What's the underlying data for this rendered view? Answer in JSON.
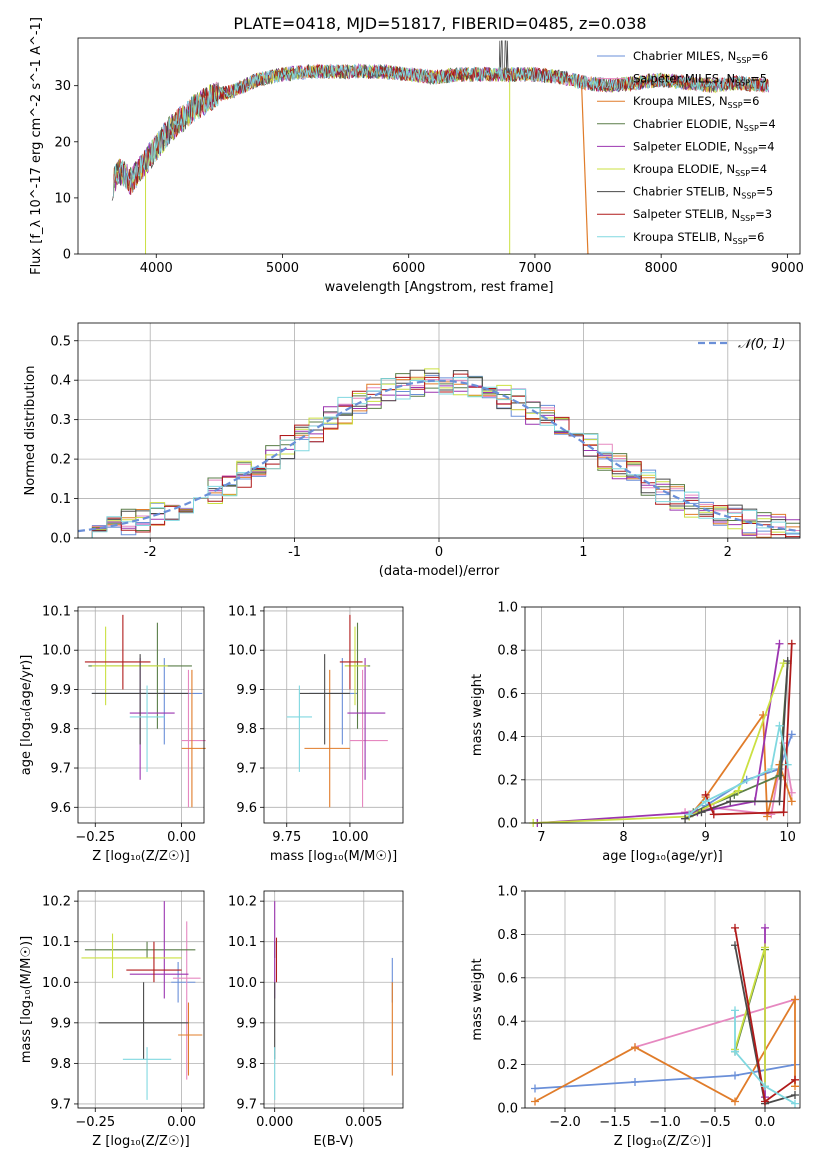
{
  "figure": {
    "title": "PLATE=0418, MJD=51817, FIBERID=0485, z=0.038"
  },
  "colors": {
    "Chabrier MILES": "#6a8fd8",
    "Salpeter MILES": "#e688c0",
    "Kroupa MILES": "#e07c2a",
    "Chabrier ELODIE": "#5a7d48",
    "Salpeter ELODIE": "#9b35b0",
    "Kroupa ELODIE": "#cbe042",
    "Chabrier STELIB": "#4a4a4a",
    "Salpeter STELIB": "#b01a1a",
    "Kroupa STELIB": "#80d8e0",
    "gaussian": "#6a8fd8"
  },
  "chart_data": [
    {
      "id": "spectrum",
      "type": "line",
      "title": "PLATE=0418, MJD=51817, FIBERID=0485, z=0.038",
      "xlabel": "wavelength [Angstrom, rest frame]",
      "ylabel": "Flux [f_λ 10^-17 erg cm^-2 s^-1 A^-1]",
      "xlim": [
        3380,
        9100
      ],
      "ylim": [
        0,
        38.5
      ],
      "xticks": [
        4000,
        5000,
        6000,
        7000,
        8000,
        9000
      ],
      "yticks": [
        0,
        10,
        20,
        30
      ],
      "grid": false,
      "legend_position": "top-right",
      "continuum_x": [
        3650,
        3700,
        3800,
        3900,
        4000,
        4100,
        4200,
        4300,
        4400,
        4500,
        4600,
        4700,
        4800,
        4900,
        5000,
        5200,
        5400,
        5600,
        5800,
        6000,
        6200,
        6400,
        6600,
        6800,
        7000,
        7200,
        7400,
        7600,
        7800,
        8000,
        8200,
        8400,
        8600,
        8850
      ],
      "continuum_y": [
        12,
        15,
        13,
        16,
        19,
        22,
        24,
        26,
        27.5,
        28.5,
        29,
        30,
        31,
        31.5,
        32,
        32.5,
        32.5,
        32.5,
        32.5,
        32,
        31.5,
        32,
        32,
        32,
        32,
        31.5,
        30.5,
        30,
        30.5,
        31,
        30.5,
        30,
        30.5,
        30
      ],
      "series": [
        {
          "name": "Chabrier MILES",
          "nssp": "6"
        },
        {
          "name": "Salpeter MILES",
          "nssp": "5"
        },
        {
          "name": "Kroupa MILES",
          "nssp": "6"
        },
        {
          "name": "Chabrier ELODIE",
          "nssp": "4"
        },
        {
          "name": "Salpeter ELODIE",
          "nssp": "4"
        },
        {
          "name": "Kroupa ELODIE",
          "nssp": "4"
        },
        {
          "name": "Chabrier STELIB",
          "nssp": "5"
        },
        {
          "name": "Salpeter STELIB",
          "nssp": "3"
        },
        {
          "name": "Kroupa STELIB",
          "nssp": "6"
        }
      ]
    },
    {
      "id": "residuals",
      "type": "line",
      "xlabel": "(data-model)/error",
      "ylabel": "Normed distribution",
      "xlim": [
        -2.5,
        2.5
      ],
      "ylim": [
        0,
        0.545
      ],
      "xticks": [
        -2,
        -1,
        0,
        1,
        2
      ],
      "yticks": [
        0.0,
        0.1,
        0.2,
        0.3,
        0.4,
        0.5
      ],
      "grid": true,
      "legend_position": "top-right",
      "legend_label": "𝒩(0, 1)",
      "bin_width": 0.1,
      "bin_start": -2.5,
      "histogram_ylabel": "Normed distribution"
    },
    {
      "id": "age_vs_Z",
      "type": "scatter",
      "xlabel": "Z [log₁₀(Z/Z☉)]",
      "ylabel": "age  [log₁₀(age/yr)]",
      "xlim": [
        -0.3,
        0.065
      ],
      "ylim": [
        9.56,
        10.11
      ],
      "xticks": [
        -0.25,
        0.0
      ],
      "xticklabels": [
        "−0.25",
        "0.00"
      ],
      "yticks": [
        9.6,
        9.7,
        9.8,
        9.9,
        10.0,
        10.1
      ],
      "grid": true,
      "points": [
        {
          "series": "Chabrier MILES",
          "x": -0.05,
          "xerr": [
            0.21,
            0.11
          ],
          "y": 9.89,
          "yerr": [
            0.13,
            0.09
          ]
        },
        {
          "series": "Salpeter MILES",
          "x": 0.02,
          "xerr": [
            0.02,
            0.05
          ],
          "y": 9.77,
          "yerr": [
            0.17,
            0.18
          ]
        },
        {
          "series": "Kroupa MILES",
          "x": 0.03,
          "xerr": [
            0.03,
            0.04
          ],
          "y": 9.75,
          "yerr": [
            0.15,
            0.2
          ]
        },
        {
          "series": "Chabrier ELODIE",
          "x": -0.07,
          "xerr": [
            0.2,
            0.1
          ],
          "y": 9.96,
          "yerr": [
            0.16,
            0.11
          ]
        },
        {
          "series": "Salpeter ELODIE",
          "x": -0.12,
          "xerr": [
            0.03,
            0.1
          ],
          "y": 9.84,
          "yerr": [
            0.17,
            0.14
          ]
        },
        {
          "series": "Kroupa ELODIE",
          "x": -0.22,
          "xerr": [
            0.04,
            0.18
          ],
          "y": 9.96,
          "yerr": [
            0.1,
            0.1
          ]
        },
        {
          "series": "Chabrier STELIB",
          "x": -0.12,
          "xerr": [
            0.14,
            0.14
          ],
          "y": 9.89,
          "yerr": [
            0.13,
            0.1
          ]
        },
        {
          "series": "Salpeter STELIB",
          "x": -0.17,
          "xerr": [
            0.11,
            0.08
          ],
          "y": 9.97,
          "yerr": [
            0.07,
            0.12
          ]
        },
        {
          "series": "Kroupa STELIB",
          "x": -0.1,
          "xerr": [
            0.05,
            0.05
          ],
          "y": 9.83,
          "yerr": [
            0.14,
            0.08
          ]
        }
      ]
    },
    {
      "id": "age_vs_mass",
      "type": "scatter",
      "xlabel": "mass [log₁₀(M/M☉)]",
      "xlim": [
        9.66,
        10.21
      ],
      "ylim": [
        9.56,
        10.11
      ],
      "xticks": [
        9.75,
        10.0
      ],
      "xticklabels": [
        "9.75",
        "10.00"
      ],
      "yticks": [
        9.6,
        9.7,
        9.8,
        9.9,
        10.0,
        10.1
      ],
      "grid": true,
      "points": [
        {
          "series": "Chabrier MILES",
          "x": 9.97,
          "xerr": [
            0.13,
            0.06
          ],
          "y": 9.89,
          "yerr": [
            0.13,
            0.09
          ]
        },
        {
          "series": "Salpeter MILES",
          "x": 10.05,
          "xerr": [
            0.05,
            0.1
          ],
          "y": 9.77,
          "yerr": [
            0.17,
            0.18
          ]
        },
        {
          "series": "Kroupa MILES",
          "x": 9.92,
          "xerr": [
            0.1,
            0.08
          ],
          "y": 9.75,
          "yerr": [
            0.15,
            0.2
          ]
        },
        {
          "series": "Chabrier ELODIE",
          "x": 10.03,
          "xerr": [
            0.05,
            0.05
          ],
          "y": 9.96,
          "yerr": [
            0.16,
            0.11
          ]
        },
        {
          "series": "Salpeter ELODIE",
          "x": 10.06,
          "xerr": [
            0.07,
            0.08
          ],
          "y": 9.84,
          "yerr": [
            0.17,
            0.14
          ]
        },
        {
          "series": "Kroupa ELODIE",
          "x": 10.02,
          "xerr": [
            0.04,
            0.05
          ],
          "y": 9.96,
          "yerr": [
            0.1,
            0.1
          ]
        },
        {
          "series": "Chabrier STELIB",
          "x": 9.9,
          "xerr": [
            0.1,
            0.1
          ],
          "y": 9.89,
          "yerr": [
            0.13,
            0.1
          ]
        },
        {
          "series": "Salpeter STELIB",
          "x": 10.0,
          "xerr": [
            0.04,
            0.05
          ],
          "y": 9.97,
          "yerr": [
            0.07,
            0.12
          ]
        },
        {
          "series": "Kroupa STELIB",
          "x": 9.8,
          "xerr": [
            0.05,
            0.05
          ],
          "y": 9.83,
          "yerr": [
            0.14,
            0.08
          ]
        }
      ]
    },
    {
      "id": "mass_weight_vs_age",
      "type": "line",
      "xlabel": "age  [log₁₀(age/yr)]",
      "ylabel": "mass weight",
      "xlim": [
        6.8,
        10.15
      ],
      "ylim": [
        0,
        1.0
      ],
      "xticks": [
        7,
        8,
        9,
        10
      ],
      "yticks": [
        0.0,
        0.2,
        0.4,
        0.6,
        0.8,
        1.0
      ],
      "grid": true,
      "series": [
        {
          "name": "Chabrier MILES",
          "x": [
            8.8,
            9.0,
            9.5,
            9.9,
            10.05
          ],
          "y": [
            0.03,
            0.08,
            0.2,
            0.25,
            0.41
          ]
        },
        {
          "name": "Salpeter MILES",
          "x": [
            8.75,
            9.1,
            9.8,
            9.95,
            10.05
          ],
          "y": [
            0.05,
            0.07,
            0.04,
            0.37,
            0.14
          ]
        },
        {
          "name": "Kroupa MILES",
          "x": [
            8.8,
            9.0,
            9.7,
            9.75,
            9.9,
            10.05
          ],
          "y": [
            0.03,
            0.12,
            0.5,
            0.03,
            0.27,
            0.1
          ]
        },
        {
          "name": "Chabrier ELODIE",
          "x": [
            8.85,
            9.35,
            9.9,
            10.0
          ],
          "y": [
            0.05,
            0.13,
            0.22,
            0.74
          ]
        },
        {
          "name": "Salpeter ELODIE",
          "x": [
            6.95,
            8.9,
            9.6,
            9.9
          ],
          "y": [
            0.0,
            0.05,
            0.1,
            0.83
          ]
        },
        {
          "name": "Kroupa ELODIE",
          "x": [
            6.9,
            8.8,
            9.4,
            9.95
          ],
          "y": [
            0.0,
            0.03,
            0.15,
            0.74
          ]
        },
        {
          "name": "Chabrier STELIB",
          "x": [
            8.75,
            8.95,
            9.3,
            9.9,
            10.0
          ],
          "y": [
            0.02,
            0.05,
            0.1,
            0.1,
            0.75
          ]
        },
        {
          "name": "Salpeter STELIB",
          "x": [
            9.0,
            9.1,
            9.95,
            10.05
          ],
          "y": [
            0.13,
            0.04,
            0.05,
            0.83
          ]
        },
        {
          "name": "Kroupa STELIB",
          "x": [
            8.8,
            9.0,
            9.8,
            9.9,
            10.0
          ],
          "y": [
            0.04,
            0.1,
            0.25,
            0.45,
            0.27
          ]
        }
      ]
    },
    {
      "id": "mass_vs_Z",
      "type": "scatter",
      "xlabel": "Z [log₁₀(Z/Z☉)]",
      "ylabel": "mass [log₁₀(M/M☉)]",
      "xlim": [
        -0.3,
        0.065
      ],
      "ylim": [
        9.69,
        10.225
      ],
      "xticks": [
        -0.25,
        0.0
      ],
      "xticklabels": [
        "−0.25",
        "0.00"
      ],
      "yticks": [
        9.7,
        9.8,
        9.9,
        10.0,
        10.1,
        10.2
      ],
      "grid": true,
      "points": [
        {
          "series": "Chabrier MILES",
          "x": -0.01,
          "xerr": [
            0.02,
            0.05
          ],
          "y": 10.0,
          "yerr": [
            0.05,
            0.05
          ]
        },
        {
          "series": "Salpeter MILES",
          "x": 0.015,
          "xerr": [
            0.04,
            0.04
          ],
          "y": 10.01,
          "yerr": [
            0.25,
            0.14
          ]
        },
        {
          "series": "Kroupa MILES",
          "x": 0.02,
          "xerr": [
            0.03,
            0.04
          ],
          "y": 9.87,
          "yerr": [
            0.1,
            0.08
          ]
        },
        {
          "series": "Chabrier ELODIE",
          "x": -0.1,
          "xerr": [
            0.18,
            0.14
          ],
          "y": 10.08,
          "yerr": [
            0.02,
            0.02
          ]
        },
        {
          "series": "Salpeter ELODIE",
          "x": -0.05,
          "xerr": [
            0.1,
            0.07
          ],
          "y": 10.02,
          "yerr": [
            0.06,
            0.18
          ]
        },
        {
          "series": "Kroupa ELODIE",
          "x": -0.2,
          "xerr": [
            0.09,
            0.2
          ],
          "y": 10.06,
          "yerr": [
            0.05,
            0.06
          ]
        },
        {
          "series": "Chabrier STELIB",
          "x": -0.11,
          "xerr": [
            0.13,
            0.13
          ],
          "y": 9.9,
          "yerr": [
            0.09,
            0.1
          ]
        },
        {
          "series": "Salpeter STELIB",
          "x": -0.08,
          "xerr": [
            0.08,
            0.08
          ],
          "y": 10.03,
          "yerr": [
            0.03,
            0.07
          ]
        },
        {
          "series": "Kroupa STELIB",
          "x": -0.1,
          "xerr": [
            0.07,
            0.07
          ],
          "y": 9.81,
          "yerr": [
            0.1,
            0.03
          ]
        }
      ]
    },
    {
      "id": "mass_vs_EBV",
      "type": "scatter",
      "xlabel": "E(B-V)",
      "xlim": [
        -0.0006,
        0.0072
      ],
      "ylim": [
        9.69,
        10.225
      ],
      "xticks": [
        0.0,
        0.005
      ],
      "xticklabels": [
        "0.000",
        "0.005"
      ],
      "yticks": [
        9.7,
        9.8,
        9.9,
        10.0,
        10.1,
        10.2
      ],
      "grid": true,
      "points": [
        {
          "series": "Chabrier MILES",
          "x": 0.0066,
          "y": 10.0,
          "yerr": [
            0.05,
            0.06
          ]
        },
        {
          "series": "Kroupa MILES",
          "x": 0.0066,
          "y": 9.87,
          "yerr": [
            0.1,
            0.13
          ]
        },
        {
          "series": "Chabrier ELODIE",
          "x": 0.0,
          "y": 10.08,
          "yerr": [
            0.02,
            0.02
          ]
        },
        {
          "series": "Salpeter ELODIE",
          "x": 0.0,
          "y": 10.02,
          "yerr": [
            0.06,
            0.18
          ]
        },
        {
          "series": "Chabrier STELIB",
          "x": 0.0,
          "y": 9.9,
          "yerr": [
            0.09,
            0.1
          ]
        },
        {
          "series": "Salpeter STELIB",
          "x": 0.0001,
          "y": 10.03,
          "yerr": [
            0.03,
            0.08
          ]
        },
        {
          "series": "Kroupa STELIB",
          "x": 0.0,
          "y": 9.81,
          "yerr": [
            0.1,
            0.03
          ]
        }
      ]
    },
    {
      "id": "mass_weight_vs_Z",
      "type": "line",
      "xlabel": "Z [log₁₀(Z/Z☉)]",
      "ylabel": "mass weight",
      "xlim": [
        -2.4,
        0.35
      ],
      "ylim": [
        0,
        1.0
      ],
      "xticks": [
        -2.0,
        -1.5,
        -1.0,
        -0.5,
        0.0
      ],
      "xticklabels": [
        "−2.0",
        "−1.5",
        "−1.0",
        "−0.5",
        "0.0"
      ],
      "yticks": [
        0.0,
        0.2,
        0.4,
        0.6,
        0.8,
        1.0
      ],
      "grid": true,
      "series": [
        {
          "name": "Chabrier MILES",
          "x": [
            -2.3,
            -1.3,
            -0.3,
            0.3
          ],
          "y": [
            0.09,
            0.12,
            0.15,
            0.2
          ]
        },
        {
          "name": "Salpeter MILES",
          "x": [
            -1.3,
            0.3
          ],
          "y": [
            0.28,
            0.5
          ]
        },
        {
          "name": "Kroupa MILES",
          "x": [
            -2.3,
            -1.3,
            -0.3,
            0.3,
            0.3
          ],
          "y": [
            0.03,
            0.28,
            0.03,
            0.5,
            0.1
          ]
        },
        {
          "name": "Chabrier ELODIE",
          "x": [
            -0.3,
            0.0
          ],
          "y": [
            0.26,
            0.73
          ]
        },
        {
          "name": "Salpeter ELODIE",
          "x": [
            0.0,
            0.0
          ],
          "y": [
            0.83,
            0.05
          ]
        },
        {
          "name": "Kroupa ELODIE",
          "x": [
            -0.3,
            0.0,
            0.0
          ],
          "y": [
            0.27,
            0.74,
            0.1
          ]
        },
        {
          "name": "Chabrier STELIB",
          "x": [
            -0.3,
            0.0,
            0.3
          ],
          "y": [
            0.75,
            0.02,
            0.06
          ]
        },
        {
          "name": "Salpeter STELIB",
          "x": [
            -0.3,
            0.0,
            0.3
          ],
          "y": [
            0.83,
            0.03,
            0.13
          ]
        },
        {
          "name": "Kroupa STELIB",
          "x": [
            -0.3,
            -0.3,
            0.0,
            0.3
          ],
          "y": [
            0.45,
            0.26,
            0.1,
            0.02
          ]
        }
      ]
    }
  ]
}
